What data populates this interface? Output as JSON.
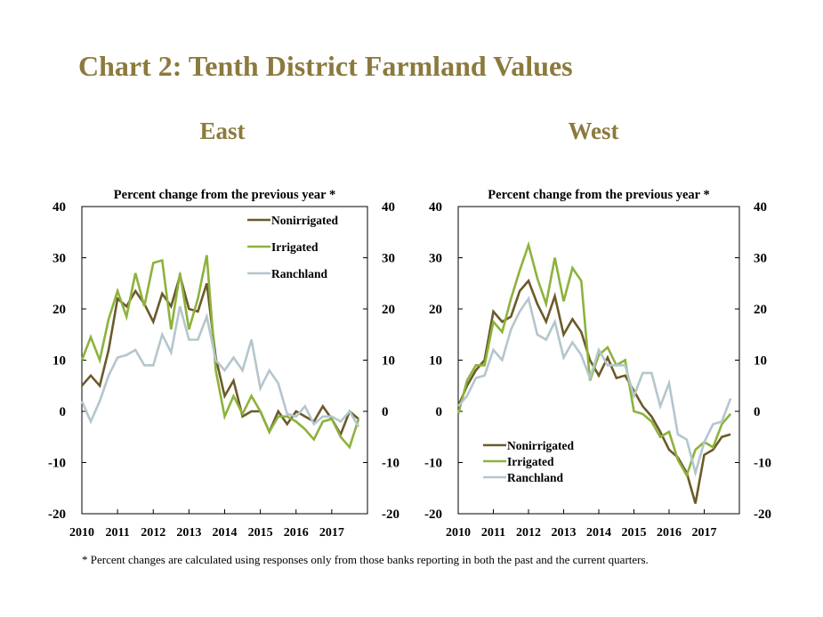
{
  "title": "Chart 2: Tenth District Farmland Values",
  "footnote": "* Percent changes are calculated using responses only from those banks reporting in both the past and the current quarters.",
  "colors": {
    "title": "#8b7a3d",
    "nonirrigated": "#6b5a2a",
    "irrigated": "#8db23c",
    "ranchland": "#b4c6cc"
  },
  "chart_data": [
    {
      "type": "line",
      "title": "East",
      "subtitle": "Percent change from the previous year *",
      "ylim": [
        -20,
        40
      ],
      "yticks": [
        "-20",
        "-10",
        "0",
        "10",
        "20",
        "30",
        "40"
      ],
      "xlim": [
        2010,
        2018
      ],
      "xticks": [
        "2010",
        "2011",
        "2012",
        "2013",
        "2014",
        "2015",
        "2016",
        "2017"
      ],
      "legend_position": "top-right",
      "grid": false,
      "x": [
        2010.0,
        2010.25,
        2010.5,
        2010.75,
        2011.0,
        2011.25,
        2011.5,
        2011.75,
        2012.0,
        2012.25,
        2012.5,
        2012.75,
        2013.0,
        2013.25,
        2013.5,
        2013.75,
        2014.0,
        2014.25,
        2014.5,
        2014.75,
        2015.0,
        2015.25,
        2015.5,
        2015.75,
        2016.0,
        2016.25,
        2016.5,
        2016.75,
        2017.0,
        2017.25,
        2017.5,
        2017.75
      ],
      "series": [
        {
          "name": "Nonirrigated",
          "color": "#6b5a2a",
          "values": [
            5,
            7,
            5,
            12,
            22,
            20.5,
            23.5,
            21,
            17.5,
            23,
            20.5,
            26.5,
            20,
            19.5,
            25,
            10.5,
            3,
            6,
            -1,
            0,
            0,
            -4,
            0,
            -2.5,
            0,
            -1,
            -2,
            1,
            -1.5,
            -4.5,
            0,
            -1.5
          ]
        },
        {
          "name": "Irrigated",
          "color": "#8db23c",
          "values": [
            10,
            14.5,
            10,
            18,
            23.5,
            18.5,
            27,
            20.5,
            29,
            29.5,
            16,
            27,
            16,
            22,
            30.5,
            8,
            -1,
            3,
            -0.5,
            3,
            0,
            -4,
            -1,
            -1,
            -2,
            -3.5,
            -5.5,
            -2,
            -1.5,
            -5,
            -7,
            -1.5
          ]
        },
        {
          "name": "Ranchland",
          "color": "#b4c6cc",
          "values": [
            2,
            -2,
            2,
            7,
            10.5,
            11,
            12,
            9,
            9,
            15,
            11.5,
            20.5,
            14,
            14,
            18.5,
            10,
            8,
            10.5,
            8,
            14,
            4.5,
            8,
            5.5,
            -0.5,
            -1,
            1,
            -2.5,
            -1,
            -1,
            -2,
            0,
            -3
          ]
        }
      ]
    },
    {
      "type": "line",
      "title": "West",
      "subtitle": "Percent change from the previous year *",
      "ylim": [
        -20,
        40
      ],
      "yticks": [
        "-20",
        "-10",
        "0",
        "10",
        "20",
        "30",
        "40"
      ],
      "xlim": [
        2010,
        2018
      ],
      "xticks": [
        "2010",
        "2011",
        "2012",
        "2013",
        "2014",
        "2015",
        "2016",
        "2017"
      ],
      "legend_position": "bottom-left",
      "grid": false,
      "x": [
        2010.0,
        2010.25,
        2010.5,
        2010.75,
        2011.0,
        2011.25,
        2011.5,
        2011.75,
        2012.0,
        2012.25,
        2012.5,
        2012.75,
        2013.0,
        2013.25,
        2013.5,
        2013.75,
        2014.0,
        2014.25,
        2014.5,
        2014.75,
        2015.0,
        2015.25,
        2015.5,
        2015.75,
        2016.0,
        2016.25,
        2016.5,
        2016.75,
        2017.0,
        2017.25,
        2017.5,
        2017.75
      ],
      "series": [
        {
          "name": "Nonirrigated",
          "color": "#6b5a2a",
          "values": [
            1,
            5,
            8,
            10,
            19.5,
            17.5,
            18.5,
            23.5,
            25.5,
            21,
            17.5,
            22.5,
            15,
            18,
            15.5,
            10,
            7,
            10.5,
            6.5,
            7,
            4,
            1,
            -1,
            -4,
            -7.5,
            -9,
            -12,
            -18,
            -8.5,
            -7.5,
            -5,
            -4.5
          ]
        },
        {
          "name": "Irrigated",
          "color": "#8db23c",
          "values": [
            -0.5,
            6,
            9,
            9,
            17.5,
            15.5,
            22,
            27.5,
            32.5,
            26,
            21,
            30,
            21.5,
            28,
            25.5,
            6,
            11,
            12.5,
            9,
            10,
            0,
            -0.5,
            -2,
            -5,
            -4,
            -9.5,
            -12.5,
            -7.5,
            -6,
            -7,
            -2.5,
            -0.5
          ]
        },
        {
          "name": "Ranchland",
          "color": "#b4c6cc",
          "values": [
            1,
            3,
            6.5,
            7,
            12,
            10,
            16,
            19.5,
            22,
            15,
            14,
            17.5,
            10.5,
            13.5,
            11,
            6.5,
            12,
            9,
            9,
            9,
            3,
            7.5,
            7.5,
            1,
            5.5,
            -4.5,
            -5.5,
            -12,
            -6,
            -2.5,
            -2,
            2.5
          ]
        }
      ]
    }
  ]
}
